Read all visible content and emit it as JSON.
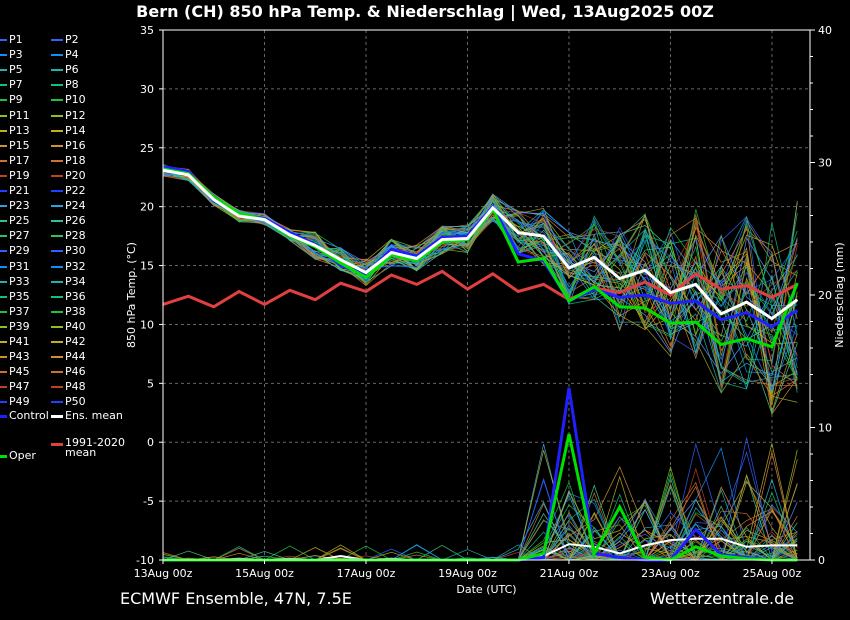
{
  "header": {
    "title": "Bern  (CH)  850 hPa Temp. & Niederschlag | Wed, 13Aug2025 00Z"
  },
  "footer": {
    "source": "ECMWF Ensemble, 47N, 7.5E",
    "site": "Wetterzentrale.de"
  },
  "legend": {
    "members": [
      "P1",
      "P2",
      "P3",
      "P4",
      "P5",
      "P6",
      "P7",
      "P8",
      "P9",
      "P10",
      "P11",
      "P12",
      "P13",
      "P14",
      "P15",
      "P16",
      "P17",
      "P18",
      "P19",
      "P20",
      "P21",
      "P22",
      "P23",
      "P24",
      "P25",
      "P26",
      "P27",
      "P28",
      "P29",
      "P30",
      "P31",
      "P32",
      "P33",
      "P34",
      "P35",
      "P36",
      "P37",
      "P38",
      "P39",
      "P40",
      "P41",
      "P42",
      "P43",
      "P44",
      "P45",
      "P46",
      "P47",
      "P48",
      "P49",
      "P50"
    ],
    "control": "Control",
    "ens_mean": "Ens. mean",
    "climate": "1991-2020 mean",
    "oper": "Oper"
  },
  "chart_data": {
    "type": "line",
    "xlabel": "Date (UTC)",
    "ylabel": "850 hPa Temp. (°C)",
    "y2label": "Niederschlag (mm)",
    "x_ticks": [
      "13Aug 00z",
      "15Aug 00z",
      "17Aug 00z",
      "19Aug 00z",
      "21Aug 00z",
      "23Aug 00z",
      "25Aug 00z"
    ],
    "x_tick_days": [
      0,
      2,
      4,
      6,
      8,
      10,
      12
    ],
    "x_range_days": [
      0,
      12.75
    ],
    "ylim": [
      -10,
      35
    ],
    "y_ticks": [
      -10,
      -5,
      0,
      5,
      10,
      15,
      20,
      25,
      30,
      35
    ],
    "y2lim": [
      0,
      40
    ],
    "y2_ticks": [
      0,
      10,
      20,
      30,
      40
    ],
    "grid": true,
    "time_step_hours": 12,
    "series": [
      {
        "name": "Ens. mean",
        "color": "#ffffff",
        "values": [
          23.1,
          22.7,
          20.6,
          19.2,
          18.9,
          17.6,
          16.7,
          15.5,
          14.4,
          16.1,
          15.6,
          17.2,
          17.3,
          19.9,
          17.8,
          17.5,
          14.8,
          15.7,
          13.9,
          14.6,
          12.7,
          13.4,
          10.9,
          11.9,
          10.5,
          12.1
        ]
      },
      {
        "name": "Oper",
        "color": "#00e000",
        "values": [
          23.2,
          22.8,
          20.8,
          19.4,
          18.9,
          17.5,
          16.6,
          15.2,
          14.0,
          15.9,
          15.4,
          17.0,
          17.2,
          19.8,
          15.3,
          15.6,
          12.0,
          13.2,
          11.5,
          11.4,
          10.1,
          10.2,
          8.3,
          8.8,
          8.1,
          13.5
        ]
      },
      {
        "name": "Control",
        "color": "#2020ff",
        "values": [
          23.4,
          23.0,
          20.5,
          19.3,
          19.0,
          17.8,
          16.8,
          15.0,
          14.3,
          16.4,
          15.8,
          17.4,
          17.5,
          20.0,
          16.0,
          15.4,
          12.0,
          13.0,
          12.3,
          12.5,
          11.8,
          12.0,
          10.4,
          11.0,
          9.8,
          11.2
        ]
      },
      {
        "name": "1991-2020 mean",
        "color": "#e04040",
        "values": [
          11.7,
          12.4,
          11.5,
          12.8,
          11.7,
          12.9,
          12.1,
          13.5,
          12.8,
          14.2,
          13.4,
          14.5,
          13.0,
          14.3,
          12.8,
          13.4,
          12.1,
          13.1,
          12.7,
          13.6,
          12.5,
          14.3,
          13.0,
          13.3,
          12.3,
          13.4
        ]
      }
    ],
    "precip": {
      "ens_mean": [
        0,
        0,
        0,
        0.1,
        0,
        0.1,
        0,
        0.3,
        0,
        0.1,
        0,
        0,
        0,
        0,
        0,
        0.3,
        1.2,
        1.0,
        0.5,
        1.1,
        1.5,
        1.6,
        1.6,
        1.0,
        1.1,
        1.1
      ],
      "control": [
        0,
        0,
        0,
        0,
        0,
        0,
        0,
        0,
        0,
        0,
        0,
        0,
        0,
        0,
        0,
        0.2,
        13.0,
        0.5,
        0.2,
        0,
        0,
        2.3,
        0.4,
        0.2,
        0,
        0
      ],
      "oper": [
        0,
        0,
        0,
        0,
        0,
        0,
        0,
        0,
        0,
        0,
        0,
        0,
        0,
        0,
        0,
        0.5,
        9.5,
        0.5,
        4.0,
        0.2,
        0,
        1.0,
        0.3,
        0.1,
        0,
        0
      ]
    }
  }
}
